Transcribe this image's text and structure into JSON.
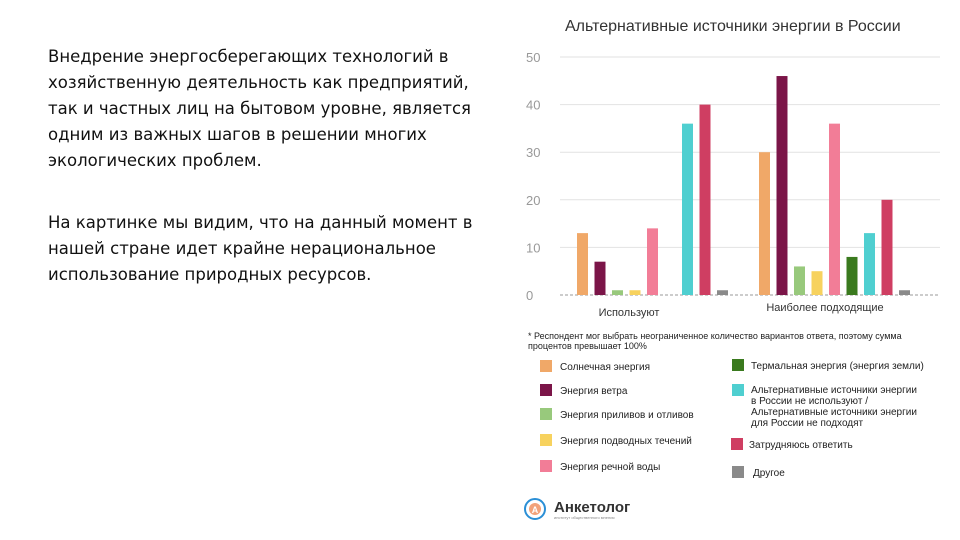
{
  "slide": {
    "paragraphs": [
      "Внедрение энергосберегающих технологий в хозяйственную деятельность как предприятий, так и частных лиц на бытовом уровне, является одним из важных шагов в решении многих экологических проблем.",
      "На картинке мы видим, что на данный момент в нашей стране идет крайне нерациональное использование природных ресурсов."
    ]
  },
  "chart_data": {
    "type": "bar",
    "title": "Альтернативные источники энергии в России",
    "categories": [
      "Используют",
      "Наиболее подходящие"
    ],
    "ylim": [
      0,
      50
    ],
    "yticks": [
      0,
      10,
      20,
      30,
      40,
      50
    ],
    "grid": true,
    "series": [
      {
        "name": "Солнечная энергия",
        "color": "#f0a868",
        "values": [
          13,
          30
        ]
      },
      {
        "name": "Энергия ветра",
        "color": "#7b1548",
        "values": [
          7,
          46
        ]
      },
      {
        "name": "Энергия приливов и отливов",
        "color": "#98c97c",
        "values": [
          1,
          6
        ]
      },
      {
        "name": "Энергия подводных течений",
        "color": "#f7d25e",
        "values": [
          1,
          5
        ]
      },
      {
        "name": "Энергия речной воды",
        "color": "#f27d97",
        "values": [
          14,
          36
        ]
      },
      {
        "name": "Термальная энергия (энергия земли)",
        "color": "#3a7a1e",
        "values": [
          0,
          8
        ]
      },
      {
        "name": "Альтернативные источники энергии в России не используют / Альтернативные источники энергии для России не подходят",
        "color": "#4fcfd0",
        "values": [
          36,
          13
        ]
      },
      {
        "name": "Затрудняюсь ответить",
        "color": "#cf3e62",
        "values": [
          40,
          20
        ]
      },
      {
        "name": "Другое",
        "color": "#8a8a8a",
        "values": [
          1,
          1
        ]
      }
    ],
    "legend_labels": {
      "left": [
        "Солнечная энергия",
        "Энергия ветра",
        "Энергия приливов и отливов",
        "Энергия подводных течений",
        "Энергия речной воды"
      ],
      "right_1": "Термальная энергия (энергия земли)",
      "right_2_lines": [
        "Альтернативные источники энергии",
        "в России не используют /",
        "Альтернативные источники энергии",
        "для России не подходят"
      ],
      "right_3": "Затрудняюсь ответить",
      "right_4": "Другое"
    },
    "footnote_lines": [
      "* Респондент мог выбрать неограниченное количество вариантов ответа, поэтому сумма",
      "процентов превышает 100%"
    ]
  },
  "brand": {
    "name": "Анкетолог",
    "tagline": "институт общественного мнения",
    "logo_letter": "A"
  }
}
